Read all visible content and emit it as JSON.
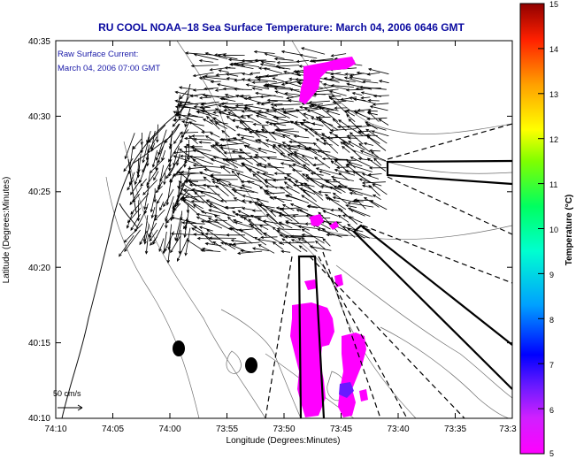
{
  "title": "RU COOL  NOAA–18  Sea Surface Temperature:  March 04, 2006 0646 GMT",
  "current_label_1": "Raw Surface Current:",
  "current_label_2": "March 04, 2006 07:00 GMT",
  "scale_label": "50 cm/s",
  "x_axis_label": "Longitude (Degrees:Minutes)",
  "y_axis_label": "Latitude (Degrees:Minutes)",
  "colorbar_label": "Temperature (°C)",
  "x_ticks": [
    "74:10",
    "74:05",
    "74:00",
    "73:55",
    "73:50",
    "73:45",
    "73:40",
    "73:35",
    "73:3"
  ],
  "y_ticks": [
    "40:35",
    "40:30",
    "40:25",
    "40:20",
    "40:15",
    "40:10"
  ],
  "colorbar_ticks": [
    "15",
    "14",
    "13",
    "12",
    "11",
    "10",
    "9",
    "8",
    "7",
    "6",
    "5"
  ],
  "colors": {
    "title": "#0a0aa0",
    "sst_patch": "#ff00ff",
    "sst_cold": "#6a1aff",
    "colorbar_stops": [
      "#ff00ff",
      "#6a1aff",
      "#0000ff",
      "#00a0ff",
      "#00ffd0",
      "#00ff60",
      "#80ff00",
      "#ffff00",
      "#ffa000",
      "#ff2000",
      "#900000"
    ]
  },
  "chart_data": {
    "type": "map",
    "xlim": [
      "74:10",
      "73:30"
    ],
    "ylim": [
      "40:10",
      "40:35"
    ],
    "colorbar_range": [
      5,
      15
    ]
  }
}
